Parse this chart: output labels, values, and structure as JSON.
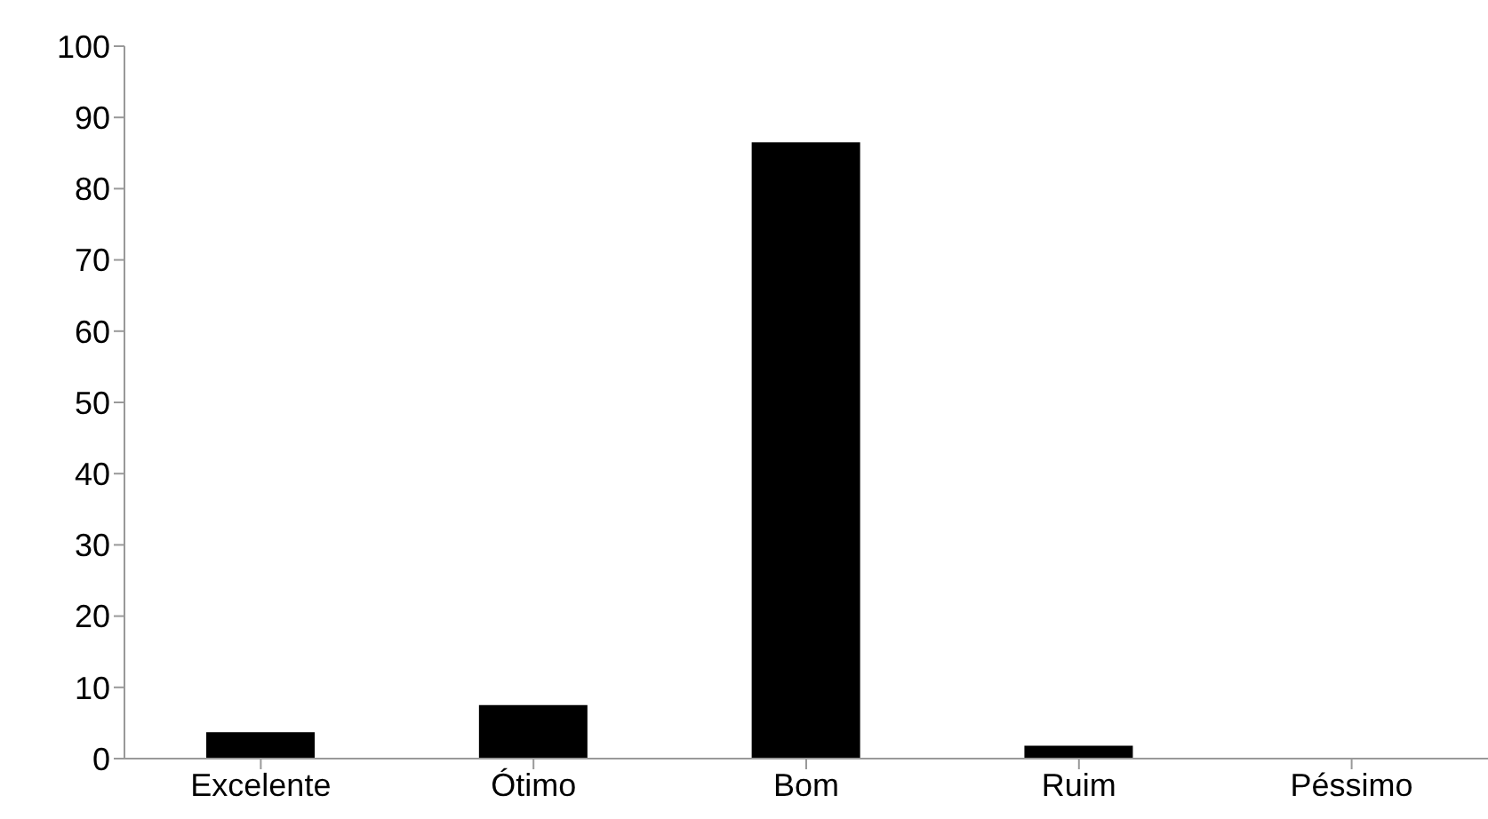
{
  "chart_data": {
    "type": "bar",
    "categories": [
      "Excelente",
      "Ótimo",
      "Bom",
      "Ruim",
      "Péssimo"
    ],
    "values": [
      3.7,
      7.5,
      86.5,
      1.8,
      0
    ],
    "color": "#000000",
    "ylim": [
      0,
      100
    ],
    "yticks": [
      0,
      10,
      20,
      30,
      40,
      50,
      60,
      70,
      80,
      90,
      100
    ],
    "grid": false,
    "legend": false
  }
}
